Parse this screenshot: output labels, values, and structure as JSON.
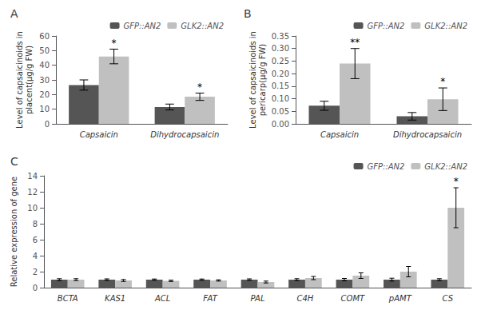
{
  "chart_data": [
    {
      "type": "bar",
      "title": "A",
      "ylabel": "Level of capsaicinoids in\nplacent(μg/g FW)",
      "categories": [
        "Capsaicin",
        "Dihydrocapsaicin"
      ],
      "series": [
        {
          "name": "GFP::AN2",
          "color": "#555555",
          "values": [
            26.5,
            11.5
          ],
          "error": [
            3.5,
            2.0
          ],
          "annotations": [
            null,
            null
          ]
        },
        {
          "name": "GLK2::AN2",
          "color": "#c0c0c0",
          "values": [
            46.0,
            18.5
          ],
          "error": [
            5.0,
            2.5
          ],
          "annotations": [
            "*",
            "*"
          ]
        }
      ],
      "ylim": [
        0,
        60
      ],
      "yticks": [
        0,
        10,
        20,
        30,
        40,
        50,
        60
      ],
      "grid": false,
      "legend": "upper right"
    },
    {
      "type": "bar",
      "title": "B",
      "ylabel": "Level of capsaicinoids in\npericarp(μg/g FW)",
      "categories": [
        "Capsaicin",
        "Dihydrocapsaicin"
      ],
      "series": [
        {
          "name": "GFP::AN2",
          "color": "#555555",
          "values": [
            0.072,
            0.03
          ],
          "error": [
            0.018,
            0.015
          ],
          "annotations": [
            null,
            null
          ]
        },
        {
          "name": "GLK2::AN2",
          "color": "#c0c0c0",
          "values": [
            0.24,
            0.098
          ],
          "error": [
            0.06,
            0.045
          ],
          "annotations": [
            "**",
            "*"
          ]
        }
      ],
      "ylim": [
        0,
        0.35
      ],
      "yticks": [
        {
          "value": 0,
          "label": "0.00"
        },
        0.05,
        {
          "value": 0.1,
          "label": "0.10"
        },
        0.15,
        {
          "value": 0.2,
          "label": "0.20"
        },
        0.25,
        {
          "value": 0.3,
          "label": "0.30"
        },
        0.35
      ],
      "grid": false,
      "legend": "upper right"
    },
    {
      "type": "bar",
      "title": "C",
      "ylabel": "Relative expression of gene",
      "categories": [
        "BCTA",
        "KAS1",
        "ACL",
        "FAT",
        "PAL",
        "C4H",
        "COMT",
        "pAMT",
        "CS"
      ],
      "series": [
        {
          "name": "GFP::AN2",
          "color": "#555555",
          "values": [
            1.0,
            1.0,
            1.0,
            1.0,
            1.0,
            1.0,
            1.0,
            1.0,
            1.0
          ],
          "error": [
            0.12,
            0.1,
            0.08,
            0.08,
            0.1,
            0.12,
            0.15,
            0.18,
            0.12
          ],
          "annotations": [
            null,
            null,
            null,
            null,
            null,
            null,
            null,
            null,
            null
          ]
        },
        {
          "name": "GLK2::AN2",
          "color": "#c0c0c0",
          "values": [
            1.0,
            0.9,
            0.85,
            0.9,
            0.7,
            1.2,
            1.5,
            2.0,
            10.0
          ],
          "error": [
            0.12,
            0.12,
            0.08,
            0.08,
            0.12,
            0.2,
            0.35,
            0.65,
            2.5
          ],
          "annotations": [
            null,
            null,
            null,
            null,
            null,
            null,
            null,
            null,
            "*"
          ]
        }
      ],
      "ylim": [
        0,
        14
      ],
      "yticks": [
        0,
        2,
        4,
        6,
        8,
        10,
        12,
        14
      ],
      "grid": false,
      "legend": "upper right"
    }
  ]
}
